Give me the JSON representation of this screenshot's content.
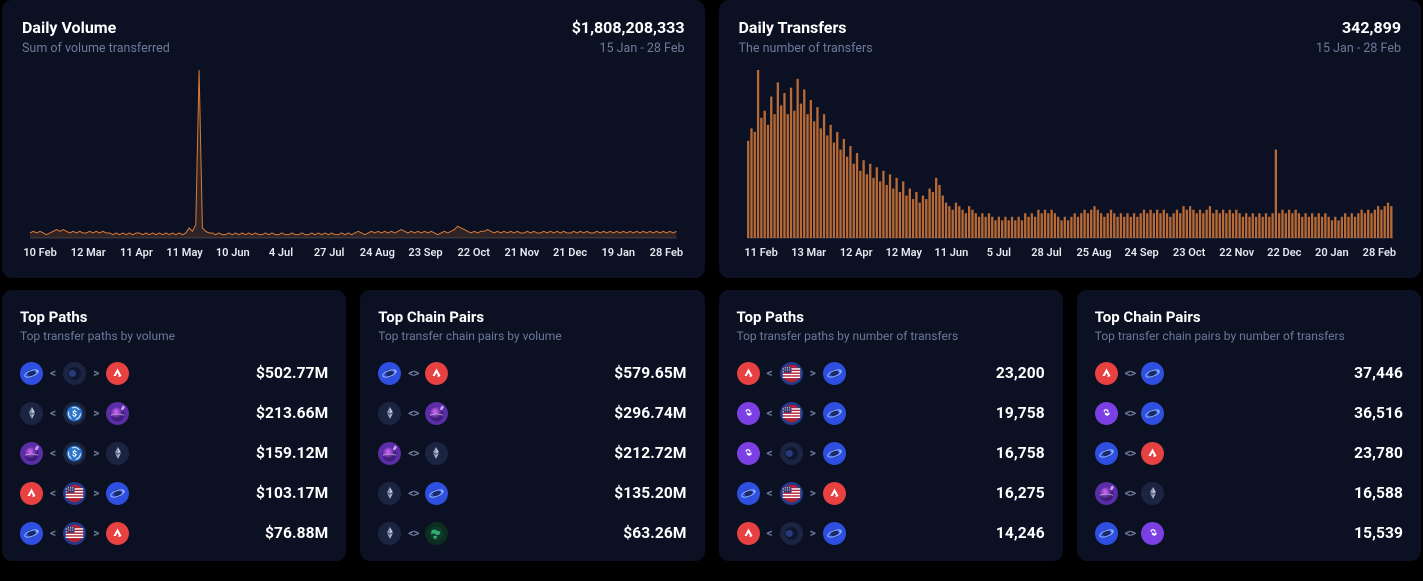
{
  "accent": "#d77a3a",
  "cards": {
    "volume": {
      "title": "Daily Volume",
      "subtitle": "Sum of volume transferred",
      "metric": "$1,808,208,333",
      "range": "15 Jan - 28 Feb",
      "chart": {
        "type": "area-line",
        "xlabels": [
          "10 Feb",
          "12 Mar",
          "11 Apr",
          "11 May",
          "10 Jun",
          "4 Jul",
          "27 Jul",
          "24 Aug",
          "23 Sep",
          "22 Oct",
          "21 Nov",
          "21 Dec",
          "19 Jan",
          "28 Feb"
        ],
        "values": [
          3,
          4,
          3,
          4,
          3,
          2,
          3,
          4,
          5,
          4,
          5,
          4,
          3,
          4,
          3,
          4,
          3,
          3,
          4,
          3,
          4,
          3,
          4,
          3,
          3,
          2,
          3,
          2,
          3,
          2,
          3,
          2,
          3,
          3,
          2,
          3,
          2,
          3,
          2,
          3,
          2,
          3,
          2,
          3,
          2,
          3,
          2,
          3,
          6,
          4,
          8,
          100,
          6,
          4,
          3,
          3,
          2,
          3,
          2,
          2,
          3,
          2,
          3,
          2,
          3,
          2,
          3,
          2,
          3,
          2,
          2,
          3,
          2,
          3,
          2,
          2,
          3,
          2,
          2,
          3,
          2,
          2,
          3,
          2,
          2,
          3,
          2,
          3,
          2,
          3,
          2,
          3,
          2,
          2,
          3,
          2,
          3,
          2,
          3,
          4,
          3,
          2,
          3,
          4,
          3,
          4,
          3,
          4,
          3,
          4,
          3,
          4,
          5,
          4,
          3,
          4,
          3,
          4,
          3,
          4,
          3,
          4,
          3,
          2,
          3,
          4,
          3,
          4,
          5,
          7,
          6,
          5,
          4,
          3,
          4,
          3,
          4,
          4,
          5,
          4,
          3,
          4,
          3,
          4,
          3,
          4,
          3,
          4,
          3,
          3,
          4,
          3,
          4,
          3,
          3,
          4,
          3,
          4,
          3,
          4,
          3,
          4,
          3,
          3,
          4,
          3,
          4,
          3,
          4,
          3,
          3,
          4,
          3,
          4,
          3,
          4,
          3,
          4,
          3,
          4,
          3,
          4,
          3,
          4,
          3,
          4,
          3,
          4,
          3,
          4,
          3,
          4,
          3,
          4,
          3,
          4
        ]
      }
    },
    "transfers": {
      "title": "Daily Transfers",
      "subtitle": "The number of transfers",
      "metric": "342,899",
      "range": "15 Jan - 28 Feb",
      "chart": {
        "type": "bar",
        "xlabels": [
          "11 Feb",
          "13 Mar",
          "12 Apr",
          "12 May",
          "11 Jun",
          "5 Jul",
          "28 Jul",
          "25 Aug",
          "24 Sep",
          "23 Oct",
          "22 Nov",
          "22 Dec",
          "20 Jan",
          "28 Feb"
        ],
        "values": [
          55,
          62,
          60,
          95,
          68,
          72,
          64,
          80,
          70,
          88,
          75,
          82,
          70,
          85,
          72,
          90,
          76,
          84,
          70,
          78,
          66,
          74,
          62,
          70,
          58,
          64,
          54,
          60,
          50,
          56,
          46,
          52,
          42,
          48,
          38,
          44,
          36,
          42,
          34,
          40,
          32,
          38,
          30,
          36,
          28,
          34,
          26,
          32,
          24,
          28,
          22,
          26,
          20,
          24,
          22,
          28,
          26,
          34,
          30,
          24,
          20,
          18,
          16,
          20,
          18,
          16,
          14,
          18,
          16,
          14,
          12,
          14,
          12,
          14,
          12,
          10,
          12,
          10,
          12,
          10,
          12,
          10,
          12,
          10,
          14,
          12,
          14,
          12,
          16,
          14,
          16,
          14,
          16,
          14,
          12,
          10,
          12,
          10,
          12,
          14,
          12,
          14,
          16,
          14,
          16,
          18,
          16,
          14,
          12,
          14,
          16,
          14,
          12,
          14,
          12,
          14,
          12,
          14,
          12,
          14,
          16,
          14,
          16,
          14,
          16,
          14,
          16,
          14,
          12,
          14,
          16,
          14,
          18,
          16,
          18,
          16,
          14,
          16,
          14,
          16,
          18,
          14,
          16,
          14,
          16,
          14,
          16,
          14,
          16,
          14,
          12,
          14,
          12,
          14,
          12,
          14,
          12,
          14,
          12,
          14,
          50,
          14,
          16,
          14,
          16,
          14,
          16,
          14,
          12,
          14,
          12,
          14,
          12,
          14,
          12,
          14,
          12,
          10,
          12,
          10,
          12,
          14,
          12,
          14,
          12,
          14,
          16,
          14,
          16,
          14,
          16,
          18,
          16,
          18,
          20,
          18
        ]
      }
    }
  },
  "lists": [
    {
      "title": "Top Paths",
      "subtitle": "Top transfer paths by volume",
      "rows": [
        {
          "path": [
            "wormhole",
            "<",
            "terra",
            ">",
            "avax"
          ],
          "value": "$502.77M"
        },
        {
          "path": [
            "eth",
            "<",
            "usdc",
            ">",
            "osmosis"
          ],
          "value": "$213.66M"
        },
        {
          "path": [
            "osmosis",
            "<",
            "usdc",
            ">",
            "eth"
          ],
          "value": "$159.12M"
        },
        {
          "path": [
            "avax",
            "<",
            "usflag",
            ">",
            "wormhole"
          ],
          "value": "$103.17M"
        },
        {
          "path": [
            "wormhole",
            "<",
            "usflag",
            ">",
            "avax"
          ],
          "value": "$76.88M"
        }
      ]
    },
    {
      "title": "Top Chain Pairs",
      "subtitle": "Top transfer chain pairs by volume",
      "rows": [
        {
          "path": [
            "wormhole",
            "<>",
            "avax"
          ],
          "value": "$579.65M"
        },
        {
          "path": [
            "eth",
            "<>",
            "osmosis"
          ],
          "value": "$296.74M"
        },
        {
          "path": [
            "osmosis",
            "<>",
            "eth"
          ],
          "value": "$212.72M"
        },
        {
          "path": [
            "eth",
            "<>",
            "wormhole"
          ],
          "value": "$135.20M"
        },
        {
          "path": [
            "eth",
            "<>",
            "globe"
          ],
          "value": "$63.26M"
        }
      ]
    },
    {
      "title": "Top Paths",
      "subtitle": "Top transfer paths by number of transfers",
      "rows": [
        {
          "path": [
            "avax",
            "<",
            "usflag",
            ">",
            "wormhole"
          ],
          "value": "23,200"
        },
        {
          "path": [
            "polygon",
            "<",
            "usflag",
            ">",
            "wormhole"
          ],
          "value": "19,758"
        },
        {
          "path": [
            "polygon",
            "<",
            "terra",
            ">",
            "wormhole"
          ],
          "value": "16,758"
        },
        {
          "path": [
            "wormhole",
            "<",
            "usflag",
            ">",
            "avax"
          ],
          "value": "16,275"
        },
        {
          "path": [
            "avax",
            "<",
            "terra",
            ">",
            "wormhole"
          ],
          "value": "14,246"
        }
      ]
    },
    {
      "title": "Top Chain Pairs",
      "subtitle": "Top transfer chain pairs by number of transfers",
      "rows": [
        {
          "path": [
            "avax",
            "<>",
            "wormhole"
          ],
          "value": "37,446"
        },
        {
          "path": [
            "polygon",
            "<>",
            "wormhole"
          ],
          "value": "36,516"
        },
        {
          "path": [
            "wormhole",
            "<>",
            "avax"
          ],
          "value": "23,780"
        },
        {
          "path": [
            "osmosis",
            "<>",
            "eth"
          ],
          "value": "16,588"
        },
        {
          "path": [
            "wormhole",
            "<>",
            "polygon"
          ],
          "value": "15,539"
        }
      ]
    }
  ],
  "icons": {
    "wormhole": {
      "bg": "#2f4fe0",
      "shape": "orbit"
    },
    "terra": {
      "bg": "#1b2440",
      "shape": "terra"
    },
    "avax": {
      "bg": "#e84142",
      "shape": "avax"
    },
    "eth": {
      "bg": "#1b2440",
      "shape": "eth"
    },
    "usdc": {
      "bg": "#1b2440",
      "shape": "usdc"
    },
    "osmosis": {
      "bg": "#5b2da6",
      "shape": "osmosis"
    },
    "usflag": {
      "bg": "#233a8a",
      "shape": "usflag"
    },
    "polygon": {
      "bg": "#7b3fe4",
      "shape": "polygon"
    },
    "globe": {
      "bg": "#0c2e20",
      "shape": "globe"
    }
  }
}
